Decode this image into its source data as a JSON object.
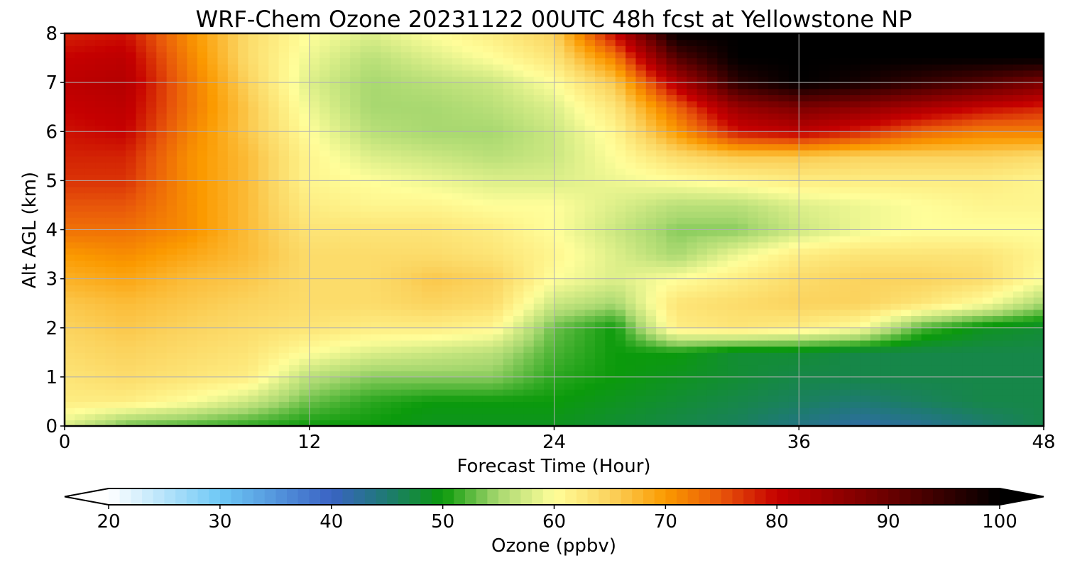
{
  "chart_data": {
    "type": "heatmap",
    "title": "WRF-Chem Ozone  20231122 00UTC 48h fcst at Yellowstone NP",
    "xlabel": "Forecast Time (Hour)",
    "ylabel": "Alt AGL (km)",
    "xlim": [
      0,
      48
    ],
    "ylim": [
      0,
      8
    ],
    "x_ticks": [
      0,
      12,
      24,
      36,
      48
    ],
    "y_ticks": [
      0,
      1,
      2,
      3,
      4,
      5,
      6,
      7,
      8
    ],
    "grid": true,
    "x": [
      0,
      3,
      6,
      9,
      12,
      15,
      18,
      21,
      24,
      27,
      30,
      33,
      36,
      39,
      42,
      45,
      48
    ],
    "y": [
      0,
      0.5,
      1,
      1.5,
      2,
      2.5,
      3,
      3.5,
      4,
      4.5,
      5,
      5.5,
      6,
      6.5,
      7,
      7.5,
      8
    ],
    "z": [
      [
        58,
        53,
        52,
        51,
        50,
        50,
        49,
        49,
        49,
        48,
        47,
        46,
        44,
        42,
        43,
        45,
        47
      ],
      [
        62,
        62,
        60,
        57,
        53,
        51,
        50,
        50,
        50,
        49,
        48,
        47,
        46,
        45,
        46,
        47,
        47
      ],
      [
        63,
        64,
        63,
        62,
        56,
        54,
        54,
        54,
        51,
        50,
        49,
        48,
        47,
        47,
        47,
        47,
        47
      ],
      [
        64,
        65,
        64,
        63,
        60,
        58,
        57,
        56,
        52,
        50,
        50,
        48,
        48,
        47,
        47,
        47,
        47
      ],
      [
        65,
        66,
        65,
        64,
        63,
        62,
        62,
        61,
        53,
        50,
        62,
        63,
        62,
        60,
        52,
        49,
        48
      ],
      [
        66,
        67,
        66,
        65,
        64,
        64,
        65,
        64,
        57,
        55,
        63,
        64,
        65,
        65,
        63,
        60,
        55
      ],
      [
        68,
        69,
        67,
        66,
        64,
        64,
        66,
        65,
        60,
        58,
        60,
        62,
        64,
        65,
        65,
        64,
        60
      ],
      [
        70,
        71,
        69,
        67,
        64,
        64,
        64,
        63,
        61,
        58,
        55,
        59,
        62,
        63,
        63,
        63,
        61
      ],
      [
        73,
        73,
        71,
        67,
        63,
        63,
        63,
        62,
        60,
        57,
        54,
        54,
        57,
        59,
        60,
        60,
        60
      ],
      [
        75,
        75,
        71,
        67,
        62,
        61,
        61,
        60,
        60,
        58,
        56,
        56,
        58,
        59,
        60,
        61,
        61
      ],
      [
        77,
        77,
        71,
        67,
        61,
        60,
        59,
        58,
        58,
        59,
        60,
        61,
        62,
        62,
        62,
        62,
        61
      ],
      [
        78,
        78,
        71,
        67,
        61,
        58,
        57,
        56,
        57,
        60,
        64,
        66,
        66,
        65,
        65,
        65,
        64
      ],
      [
        79,
        80,
        72,
        66,
        60,
        56,
        55,
        55,
        57,
        61,
        70,
        79,
        81,
        78,
        74,
        72,
        72
      ],
      [
        80,
        81,
        73,
        66,
        59,
        55,
        55,
        56,
        58,
        63,
        74,
        85,
        88,
        86,
        83,
        80,
        78
      ],
      [
        81,
        82,
        73,
        65,
        58,
        55,
        56,
        57,
        60,
        66,
        82,
        96,
        100,
        98,
        95,
        92,
        88
      ],
      [
        80,
        81,
        72,
        64,
        59,
        56,
        58,
        60,
        63,
        72,
        92,
        100,
        100,
        100,
        100,
        100,
        100
      ],
      [
        78,
        79,
        71,
        64,
        60,
        58,
        60,
        62,
        65,
        80,
        100,
        100,
        100,
        100,
        100,
        100,
        100
      ]
    ],
    "colorbar": {
      "label": "Ozone  (ppbv)",
      "min": 20,
      "max": 100,
      "ticks": [
        20,
        30,
        40,
        50,
        60,
        70,
        80,
        90,
        100
      ],
      "extend": "both",
      "colors": [
        {
          "v": 20,
          "c": "#ffffff"
        },
        {
          "v": 30,
          "c": "#6ec8f5"
        },
        {
          "v": 40,
          "c": "#3a63c4"
        },
        {
          "v": 45,
          "c": "#1e7a72"
        },
        {
          "v": 50,
          "c": "#0b9a0b"
        },
        {
          "v": 55,
          "c": "#a8d870"
        },
        {
          "v": 60,
          "c": "#fffe9a"
        },
        {
          "v": 65,
          "c": "#fbd35e"
        },
        {
          "v": 70,
          "c": "#fb9a00"
        },
        {
          "v": 75,
          "c": "#e8560a"
        },
        {
          "v": 80,
          "c": "#c60000"
        },
        {
          "v": 90,
          "c": "#6a0000"
        },
        {
          "v": 100,
          "c": "#000000"
        }
      ]
    }
  }
}
